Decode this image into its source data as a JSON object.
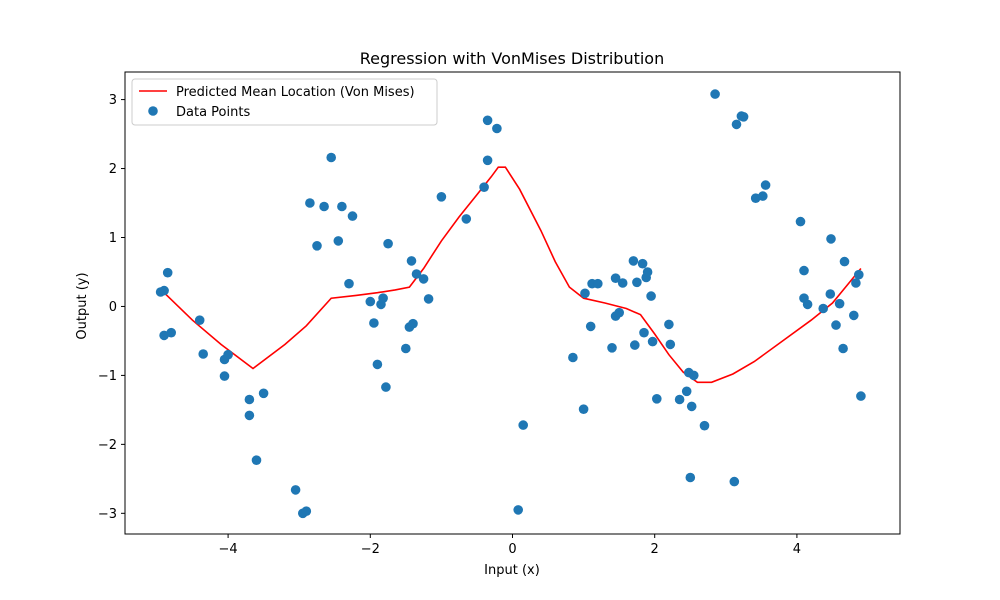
{
  "chart_data": {
    "type": "scatter",
    "title": "Regression with VonMises Distribution",
    "xlabel": "Input (x)",
    "ylabel": "Output (y)",
    "xlim": [
      -5.45,
      5.45
    ],
    "ylim": [
      -3.3,
      3.4
    ],
    "xticks": [
      -4,
      -2,
      0,
      2,
      4
    ],
    "yticks": [
      -3,
      -2,
      -1,
      0,
      1,
      2,
      3
    ],
    "grid": false,
    "legend_position": "upper-left",
    "series": [
      {
        "name": "Predicted Mean Location (Von Mises)",
        "kind": "line",
        "color": "#ff0000",
        "points": [
          [
            -4.9,
            0.2
          ],
          [
            -4.5,
            -0.2
          ],
          [
            -4.1,
            -0.55
          ],
          [
            -3.65,
            -0.9
          ],
          [
            -3.2,
            -0.55
          ],
          [
            -2.9,
            -0.28
          ],
          [
            -2.55,
            0.12
          ],
          [
            -2.2,
            0.16
          ],
          [
            -1.9,
            0.2
          ],
          [
            -1.65,
            0.24
          ],
          [
            -1.45,
            0.28
          ],
          [
            -1.25,
            0.55
          ],
          [
            -1.0,
            0.95
          ],
          [
            -0.75,
            1.3
          ],
          [
            -0.5,
            1.62
          ],
          [
            -0.3,
            1.88
          ],
          [
            -0.2,
            2.02
          ],
          [
            -0.1,
            2.02
          ],
          [
            0.1,
            1.7
          ],
          [
            0.4,
            1.1
          ],
          [
            0.6,
            0.65
          ],
          [
            0.8,
            0.28
          ],
          [
            1.0,
            0.12
          ],
          [
            1.3,
            0.05
          ],
          [
            1.6,
            -0.03
          ],
          [
            1.8,
            -0.12
          ],
          [
            2.0,
            -0.4
          ],
          [
            2.2,
            -0.7
          ],
          [
            2.4,
            -0.95
          ],
          [
            2.6,
            -1.1
          ],
          [
            2.8,
            -1.1
          ],
          [
            3.1,
            -0.98
          ],
          [
            3.4,
            -0.8
          ],
          [
            3.8,
            -0.5
          ],
          [
            4.2,
            -0.2
          ],
          [
            4.5,
            0.05
          ],
          [
            4.7,
            0.3
          ],
          [
            4.9,
            0.55
          ]
        ]
      },
      {
        "name": "Data Points",
        "kind": "scatter",
        "color": "#1f77b4",
        "points": [
          [
            -4.95,
            0.21
          ],
          [
            -4.9,
            0.23
          ],
          [
            -4.9,
            -0.42
          ],
          [
            -4.85,
            0.49
          ],
          [
            -4.8,
            -0.38
          ],
          [
            -4.4,
            -0.2
          ],
          [
            -4.35,
            -0.69
          ],
          [
            -4.05,
            -0.77
          ],
          [
            -4.05,
            -1.01
          ],
          [
            -4.0,
            -0.7
          ],
          [
            -3.7,
            -1.35
          ],
          [
            -3.7,
            -1.58
          ],
          [
            -3.6,
            -2.23
          ],
          [
            -3.5,
            -1.26
          ],
          [
            -3.05,
            -2.66
          ],
          [
            -2.95,
            -3.0
          ],
          [
            -2.9,
            -2.97
          ],
          [
            -2.85,
            1.5
          ],
          [
            -2.75,
            0.88
          ],
          [
            -2.65,
            1.45
          ],
          [
            -2.55,
            2.16
          ],
          [
            -2.45,
            0.95
          ],
          [
            -2.4,
            1.45
          ],
          [
            -2.3,
            0.33
          ],
          [
            -2.25,
            1.31
          ],
          [
            -2.0,
            0.07
          ],
          [
            -1.95,
            -0.24
          ],
          [
            -1.9,
            -0.84
          ],
          [
            -1.85,
            0.03
          ],
          [
            -1.82,
            0.12
          ],
          [
            -1.78,
            -1.17
          ],
          [
            -1.75,
            0.91
          ],
          [
            -1.5,
            -0.61
          ],
          [
            -1.45,
            -0.3
          ],
          [
            -1.42,
            0.66
          ],
          [
            -1.4,
            -0.25
          ],
          [
            -1.35,
            0.47
          ],
          [
            -1.25,
            0.4
          ],
          [
            -1.18,
            0.11
          ],
          [
            -1.0,
            1.59
          ],
          [
            -0.65,
            1.27
          ],
          [
            -0.4,
            1.73
          ],
          [
            -0.35,
            2.7
          ],
          [
            -0.35,
            2.12
          ],
          [
            -0.22,
            2.58
          ],
          [
            0.08,
            -2.95
          ],
          [
            0.15,
            -1.72
          ],
          [
            0.85,
            -0.74
          ],
          [
            1.0,
            -1.49
          ],
          [
            1.02,
            0.19
          ],
          [
            1.1,
            -0.29
          ],
          [
            1.12,
            0.33
          ],
          [
            1.2,
            0.33
          ],
          [
            1.4,
            -0.6
          ],
          [
            1.45,
            0.41
          ],
          [
            1.45,
            -0.14
          ],
          [
            1.5,
            -0.09
          ],
          [
            1.55,
            0.34
          ],
          [
            1.7,
            0.66
          ],
          [
            1.72,
            -0.56
          ],
          [
            1.75,
            0.35
          ],
          [
            1.83,
            0.62
          ],
          [
            1.85,
            -0.38
          ],
          [
            1.88,
            0.42
          ],
          [
            1.9,
            0.5
          ],
          [
            1.95,
            0.15
          ],
          [
            1.97,
            -0.51
          ],
          [
            2.03,
            -1.34
          ],
          [
            2.2,
            -0.26
          ],
          [
            2.22,
            -0.55
          ],
          [
            2.35,
            -1.35
          ],
          [
            2.45,
            -1.23
          ],
          [
            2.48,
            -0.96
          ],
          [
            2.5,
            -2.48
          ],
          [
            2.52,
            -1.45
          ],
          [
            2.55,
            -1.0
          ],
          [
            2.7,
            -1.73
          ],
          [
            2.85,
            3.08
          ],
          [
            3.12,
            -2.54
          ],
          [
            3.15,
            2.64
          ],
          [
            3.22,
            2.76
          ],
          [
            3.25,
            2.75
          ],
          [
            3.42,
            1.57
          ],
          [
            3.52,
            1.6
          ],
          [
            3.56,
            1.76
          ],
          [
            4.05,
            1.23
          ],
          [
            4.1,
            0.52
          ],
          [
            4.1,
            0.12
          ],
          [
            4.15,
            0.03
          ],
          [
            4.37,
            -0.03
          ],
          [
            4.47,
            0.18
          ],
          [
            4.48,
            0.98
          ],
          [
            4.55,
            -0.27
          ],
          [
            4.6,
            0.04
          ],
          [
            4.65,
            -0.61
          ],
          [
            4.67,
            0.65
          ],
          [
            4.8,
            -0.13
          ],
          [
            4.83,
            0.34
          ],
          [
            4.87,
            0.46
          ],
          [
            4.9,
            -1.3
          ]
        ]
      }
    ]
  }
}
